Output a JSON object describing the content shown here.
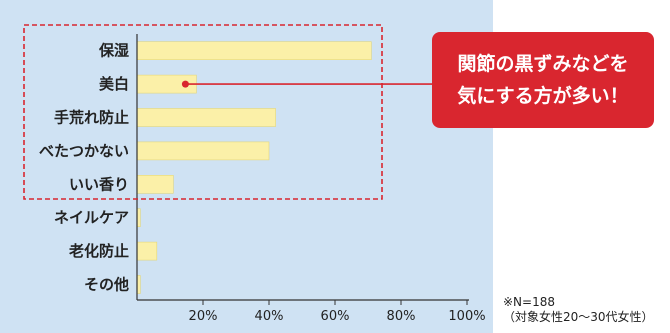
{
  "chart_data": {
    "type": "bar",
    "orientation": "horizontal",
    "categories": [
      "保湿",
      "美白",
      "手荒れ防止",
      "べたつかない",
      "いい香り",
      "ネイルケア",
      "老化防止",
      "その他"
    ],
    "values": [
      71,
      18,
      42,
      40,
      11,
      1,
      6,
      1
    ],
    "title": "",
    "xlabel": "",
    "ylabel": "",
    "xlim": [
      0,
      100
    ],
    "x_ticks": [
      "20%",
      "40%",
      "60%",
      "80%",
      "100%"
    ],
    "x_tick_values": [
      20,
      40,
      60,
      80,
      100
    ],
    "grid": false,
    "highlighted_categories": [
      "保湿",
      "美白",
      "手荒れ防止",
      "べたつかない",
      "いい香り"
    ],
    "annotation": {
      "lines": [
        "関節の黒ずみなどを",
        "気にする方が多い！"
      ],
      "target_category": "美白"
    }
  },
  "notes": {
    "sample_size": "※N=188",
    "target": "（対象女性20〜30代女性）"
  },
  "colors": {
    "plot_background": "#cfe2f3",
    "bar": "#fbf0a8",
    "bar_edge": "#e5d87a",
    "highlight": "#d9262f",
    "callout": "#d9262f",
    "axis": "#333333"
  }
}
